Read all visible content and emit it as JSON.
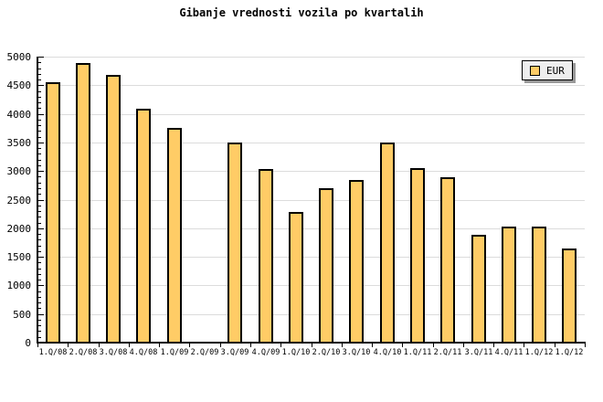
{
  "title": "Gibanje vrednosti vozila po kvartalih",
  "legend": {
    "items": [
      {
        "label": "EUR",
        "swatch_color": "#ffcc66"
      }
    ],
    "position": "top-right"
  },
  "colors": {
    "bar_fill": "#ffcc66",
    "bar_border": "#000000",
    "grid": "#dcdcdc",
    "axis": "#000000",
    "background": "#ffffff",
    "legend_bg": "#eeeeee",
    "legend_shadow": "#999999",
    "text": "#000000"
  },
  "chart_data": {
    "type": "bar",
    "title": "Gibanje vrednosti vozila po kvartalih",
    "categories": [
      "1.Q/08",
      "2.Q/08",
      "3.Q/08",
      "4.Q/08",
      "1.Q/09",
      "2.Q/09",
      "3.Q/09",
      "4.Q/09",
      "1.Q/10",
      "2.Q/10",
      "3.Q/10",
      "4.Q/10",
      "1.Q/11",
      "2.Q/11",
      "3.Q/11",
      "4.Q/11",
      "1.Q/12",
      "1.Q/12"
    ],
    "values": [
      4550,
      4890,
      4680,
      4090,
      3760,
      null,
      3500,
      3040,
      2290,
      2700,
      2840,
      3500,
      3050,
      2890,
      1890,
      2030,
      2030,
      1650
    ],
    "series": [
      {
        "name": "EUR",
        "values": [
          4550,
          4890,
          4680,
          4090,
          3760,
          null,
          3500,
          3040,
          2290,
          2700,
          2840,
          3500,
          3050,
          2890,
          1890,
          2030,
          2030,
          1650
        ]
      }
    ],
    "xlabel": "",
    "ylabel": "",
    "ylim": [
      0,
      5000
    ],
    "ytick_step": 500,
    "y_minor_tick_step": 100,
    "yticks": [
      0,
      500,
      1000,
      1500,
      2000,
      2500,
      3000,
      3500,
      4000,
      4500,
      5000
    ],
    "grid": true,
    "legend_position": "top-right"
  }
}
